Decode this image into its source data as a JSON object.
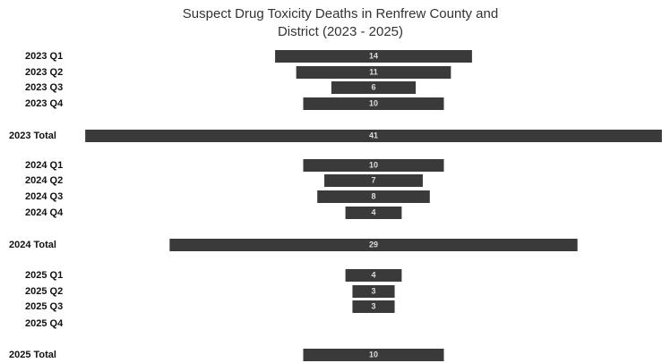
{
  "chart_data": {
    "type": "bar",
    "orientation": "horizontal",
    "layout": "centered",
    "title": "Suspect Drug Toxicity Deaths in Renfrew County and District (2023 - 2025)",
    "categories": [
      "2023 Q1",
      "2023 Q2",
      "2023 Q3",
      "2023 Q4",
      "2023 Total",
      "2024 Q1",
      "2024 Q2",
      "2024 Q3",
      "2024 Q4",
      "2024 Total",
      "2025 Q1",
      "2025 Q2",
      "2025 Q3",
      "2025 Q4",
      "2025 Total"
    ],
    "values": [
      14,
      11,
      6,
      10,
      41,
      10,
      7,
      8,
      4,
      29,
      4,
      3,
      3,
      null,
      10
    ],
    "color": "#3a3a3a"
  }
}
